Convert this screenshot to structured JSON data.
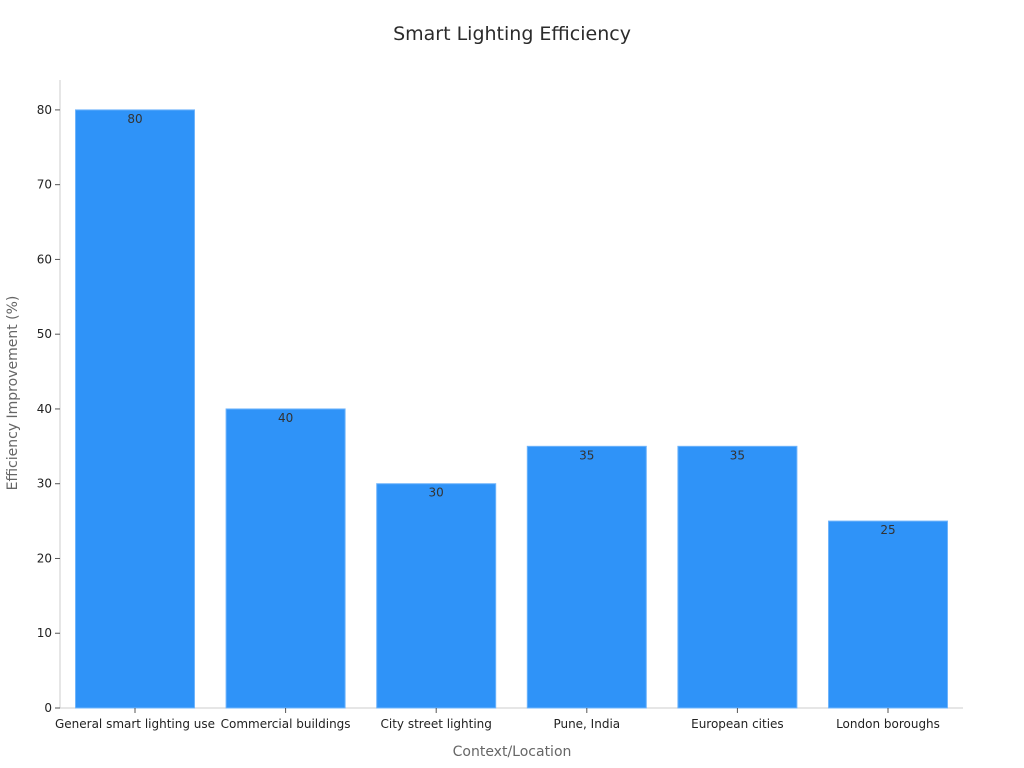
{
  "chart_data": {
    "type": "bar",
    "title": "Smart Lighting Efficiency",
    "xlabel": "Context/Location",
    "ylabel": "Efficiency Improvement (%)",
    "categories": [
      "General smart lighting use",
      "Commercial buildings",
      "City street lighting",
      "Pune, India",
      "European cities",
      "London boroughs"
    ],
    "values": [
      80,
      40,
      30,
      35,
      35,
      25
    ],
    "ylim": [
      0,
      84
    ],
    "yticks": [
      0,
      10,
      20,
      30,
      40,
      50,
      60,
      70,
      80
    ],
    "grid": false,
    "bar_color": "#2f93f8"
  }
}
